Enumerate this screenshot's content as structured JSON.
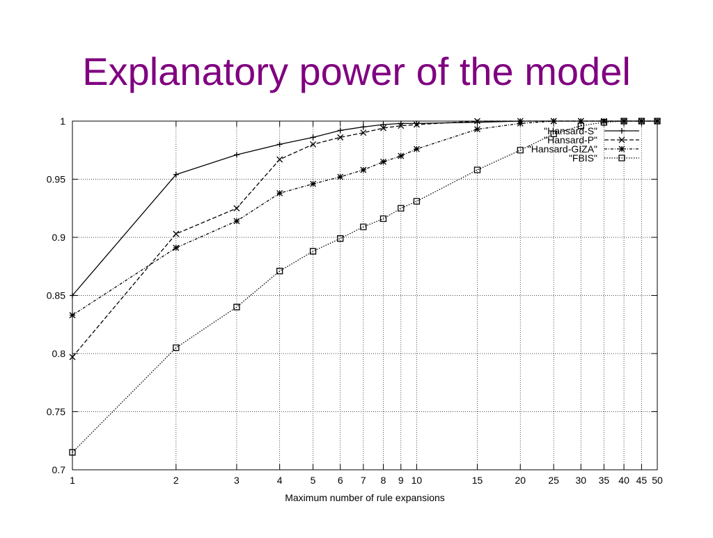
{
  "chart_data": {
    "type": "line",
    "title": "Explanatory power of the model",
    "x_label": "Maximum number of rule expansions",
    "x_scale": "log",
    "grid": true,
    "legend": "top-right",
    "x": [
      1,
      2,
      3,
      4,
      5,
      6,
      7,
      8,
      9,
      10,
      15,
      20,
      25,
      30,
      35,
      40,
      45,
      50
    ],
    "xlim": [
      1,
      50
    ],
    "xticks": [
      1,
      2,
      3,
      4,
      5,
      6,
      7,
      8,
      9,
      10,
      15,
      20,
      25,
      30,
      35,
      40,
      45,
      50
    ],
    "ylim": [
      0.7,
      1
    ],
    "yticks": [
      0.7,
      0.75,
      0.8,
      0.85,
      0.9,
      0.95,
      1
    ],
    "series": [
      {
        "name": "\"Hansard-S\"",
        "color": "#000000",
        "marker": "plus",
        "dash": "solid",
        "values": [
          0.85,
          0.954,
          0.971,
          0.98,
          0.986,
          0.992,
          0.995,
          0.997,
          0.998,
          0.998,
          0.999,
          1,
          1,
          1,
          1,
          1,
          1,
          1
        ]
      },
      {
        "name": "\"Hansard-P\"",
        "color": "#000000",
        "marker": "cross",
        "dash": "dashed",
        "values": [
          0.797,
          0.903,
          0.925,
          0.967,
          0.98,
          0.986,
          0.99,
          0.994,
          0.996,
          0.997,
          1,
          1,
          1,
          1,
          1,
          1,
          1,
          1
        ]
      },
      {
        "name": "\"Hansard-GIZA\"",
        "color": "#000000",
        "marker": "star",
        "dash": "dashdot",
        "values": [
          0.833,
          0.891,
          0.914,
          0.938,
          0.946,
          0.952,
          0.958,
          0.965,
          0.97,
          0.976,
          0.993,
          0.998,
          1,
          1,
          1,
          1,
          1,
          1
        ]
      },
      {
        "name": "\"FBIS\"",
        "color": "#000000",
        "marker": "square",
        "dash": "dotted",
        "values": [
          0.715,
          0.805,
          0.84,
          0.871,
          0.888,
          0.899,
          0.909,
          0.916,
          0.925,
          0.931,
          0.958,
          0.975,
          0.989,
          0.996,
          0.999,
          1,
          1,
          1
        ]
      }
    ]
  }
}
